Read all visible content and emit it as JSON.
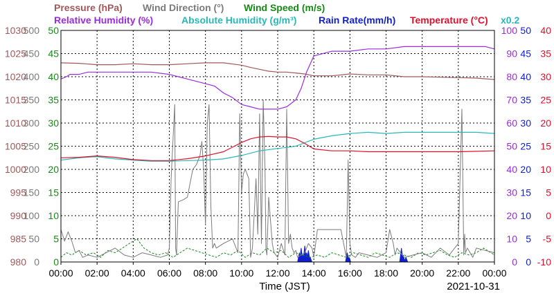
{
  "colors": {
    "pressure": "#a0585a",
    "wind_direction": "#7a7a7a",
    "wind_speed": "#158a15",
    "humidity": "#9a2be0",
    "absolute_humidity": "#28b8b8",
    "rain_rate": "#1020d0",
    "temperature": "#e0102a",
    "grid": "#000000"
  },
  "chart_data": {
    "type": "line",
    "legend": {
      "row1": [
        {
          "key": "pressure",
          "text": "Pressure (hPa)"
        },
        {
          "key": "wind_direction",
          "text": "Wind Direction (°)"
        },
        {
          "key": "wind_speed",
          "text": "Wind Speed (m/s)"
        }
      ],
      "row2": [
        {
          "key": "humidity",
          "text": "Relative Humidity (%)"
        },
        {
          "key": "absolute_humidity",
          "text": "Absolute Humidity (g/m³)"
        },
        {
          "key": "rain_rate",
          "text": "Rain Rate(mm/h)"
        },
        {
          "key": "temperature",
          "text": "Temperature (°C)"
        },
        {
          "key": "absolute_humidity",
          "text": "x0.2"
        }
      ]
    },
    "xlabel": "Time (JST)",
    "date": "2021-10-31",
    "x_range_hours": [
      0,
      24
    ],
    "x_ticks": [
      "00:00",
      "02:00",
      "04:00",
      "06:00",
      "08:00",
      "10:00",
      "12:00",
      "14:00",
      "16:00",
      "18:00",
      "20:00",
      "22:00",
      "00:00"
    ],
    "axes": {
      "pressure": {
        "range": [
          980,
          1030
        ],
        "ticks": [
          "980",
          "985",
          "990",
          "995",
          "1000",
          "1005",
          "1010",
          "1015",
          "1020",
          "1025",
          "1030"
        ]
      },
      "wind_direction": {
        "range": [
          0,
          500
        ],
        "ticks": [
          "0",
          "50",
          "100",
          "150",
          "200",
          "250",
          "300",
          "350",
          "400",
          "450",
          "500"
        ]
      },
      "wind_speed": {
        "range": [
          0,
          50
        ],
        "ticks": [
          "0",
          "5",
          "10",
          "15",
          "20",
          "25",
          "30",
          "35",
          "40",
          "45",
          "50"
        ]
      },
      "humidity": {
        "range": [
          0,
          100
        ],
        "ticks": [
          "0",
          "10",
          "20",
          "30",
          "40",
          "50",
          "60",
          "70",
          "80",
          "90",
          "100"
        ]
      },
      "rain_rate": {
        "range": [
          0,
          50
        ],
        "ticks": [
          "0",
          "5",
          "10",
          "15",
          "20",
          "25",
          "30",
          "35",
          "40",
          "45",
          "50"
        ]
      },
      "temperature": {
        "range": [
          -10,
          40
        ],
        "ticks": [
          "-10",
          "-5",
          "0",
          "5",
          "10",
          "15",
          "20",
          "25",
          "30",
          "35",
          "40"
        ]
      }
    },
    "series": [
      {
        "name": "Pressure (hPa)",
        "key": "pressure",
        "axis": "pressure",
        "x": [
          0,
          1,
          2,
          3,
          4,
          5,
          6,
          7,
          8,
          9,
          10,
          10.5,
          11,
          11.5,
          12,
          12.5,
          13,
          13.5,
          14,
          15,
          16,
          17,
          18,
          19,
          20,
          21,
          22,
          23,
          24
        ],
        "y": [
          1023,
          1022.9,
          1022.6,
          1022.6,
          1022.8,
          1022.6,
          1022.6,
          1022.8,
          1023,
          1023,
          1022.5,
          1022,
          1021.6,
          1021.2,
          1021,
          1021,
          1020.8,
          1020.6,
          1020.2,
          1020.2,
          1020.6,
          1020.4,
          1020.4,
          1020,
          1020,
          1019.9,
          1019.8,
          1019.7,
          1019.4
        ]
      },
      {
        "name": "Relative Humidity (%)",
        "key": "humidity",
        "axis": "humidity",
        "x": [
          0,
          0.3,
          0.5,
          1,
          1.5,
          2,
          3,
          4,
          5,
          6,
          6.5,
          7,
          7.5,
          8,
          8.5,
          9,
          9.5,
          10,
          10.5,
          11,
          11.5,
          12,
          12.5,
          13,
          13.3,
          13.6,
          14,
          15,
          16,
          17,
          18,
          19,
          20,
          21,
          22,
          23,
          23.5,
          24
        ],
        "y": [
          79,
          80,
          81,
          81,
          82,
          82,
          82,
          82,
          82,
          81,
          80,
          79,
          78,
          77,
          76,
          73,
          71,
          68,
          67,
          66,
          66,
          66,
          67,
          70,
          75,
          82,
          89,
          91,
          91,
          92,
          92,
          93,
          93,
          93,
          93,
          93,
          93,
          92
        ]
      },
      {
        "name": "Absolute Humidity (g/m³)",
        "key": "absolute_humidity",
        "axis": "humidity",
        "x": [
          0,
          1,
          2,
          3,
          4,
          5,
          6,
          7,
          8,
          9,
          10,
          11,
          12,
          12.5,
          13,
          14,
          15,
          16,
          17,
          18,
          19,
          20,
          21,
          22,
          23,
          24
        ],
        "y": [
          44,
          45,
          45.5,
          44.5,
          44,
          43.5,
          43.5,
          43.8,
          44,
          44.5,
          46,
          48,
          49,
          49.5,
          50,
          53,
          54.5,
          55.5,
          56,
          55.5,
          56,
          56,
          56,
          56,
          56,
          55.5
        ]
      },
      {
        "name": "Temperature (°C)",
        "key": "temperature",
        "axis": "temperature",
        "x": [
          0,
          1,
          2,
          3,
          4,
          5,
          6,
          7,
          8,
          9,
          10,
          10.5,
          11,
          11.5,
          12,
          12.5,
          13,
          13.5,
          14,
          15,
          16,
          17,
          18,
          19,
          20,
          21,
          22,
          23,
          24
        ],
        "y": [
          12.5,
          12.6,
          12.9,
          12.6,
          12.1,
          11.9,
          11.9,
          12.3,
          12.9,
          13.8,
          15.8,
          16.6,
          17.0,
          17.1,
          17.0,
          17.0,
          16.6,
          15.6,
          14.4,
          14.0,
          14.0,
          13.8,
          13.8,
          13.8,
          13.8,
          13.8,
          13.8,
          13.9,
          14.0
        ]
      },
      {
        "name": "Wind Direction (°)",
        "key": "wind_direction",
        "axis": "wind_direction",
        "x": [
          0,
          0.2,
          0.4,
          0.6,
          0.8,
          1.0,
          1.2,
          1.5,
          2,
          2.5,
          3,
          3.5,
          4,
          4.5,
          5,
          5.5,
          5.9,
          6.0,
          6.1,
          6.3,
          6.35,
          6.4,
          6.5,
          6.8,
          7.0,
          7.2,
          7.3,
          7.5,
          7.7,
          7.8,
          7.9,
          8.0,
          8.1,
          8.2,
          8.3,
          8.4,
          8.5,
          8.6,
          9.0,
          9.5,
          9.8,
          9.9,
          10.0,
          10.1,
          10.2,
          10.4,
          10.5,
          10.6,
          10.8,
          10.9,
          11.0,
          11.1,
          11.2,
          11.3,
          11.35,
          11.4,
          11.5,
          11.7,
          11.8,
          12.0,
          12.2,
          12.4,
          12.5,
          12.55,
          12.6,
          12.7,
          12.8,
          12.9,
          13.0,
          13.1,
          13.3,
          13.5,
          13.7,
          13.9,
          14.0,
          14.2,
          14.5,
          15.0,
          15.5,
          15.8,
          15.9,
          16.0,
          16.1,
          16.3,
          16.5,
          17.0,
          17.5,
          18.0,
          18.2,
          18.4,
          18.5,
          18.6,
          18.8,
          19.0,
          19.5,
          20,
          20.5,
          21,
          21.5,
          22,
          22.2,
          22.3,
          22.35,
          22.4,
          22.5,
          22.8,
          23,
          23.5,
          24
        ],
        "y": [
          70,
          45,
          65,
          45,
          20,
          25,
          10,
          15,
          10,
          20,
          30,
          15,
          10,
          20,
          15,
          10,
          15,
          30,
          180,
          340,
          30,
          15,
          130,
          135,
          140,
          180,
          200,
          210,
          230,
          260,
          200,
          80,
          300,
          340,
          120,
          30,
          40,
          30,
          40,
          50,
          20,
          320,
          150,
          190,
          200,
          180,
          10,
          30,
          180,
          60,
          320,
          40,
          350,
          200,
          30,
          15,
          140,
          40,
          20,
          10,
          40,
          15,
          330,
          200,
          40,
          60,
          30,
          20,
          25,
          10,
          15,
          20,
          40,
          30,
          10,
          70,
          70,
          70,
          70,
          10,
          220,
          40,
          15,
          10,
          20,
          15,
          10,
          20,
          70,
          40,
          15,
          30,
          20,
          10,
          15,
          20,
          10,
          30,
          15,
          40,
          330,
          15,
          60,
          20,
          30,
          10,
          30,
          25,
          20
        ]
      },
      {
        "name": "Wind Speed (m/s)",
        "key": "wind_speed",
        "axis": "wind_speed",
        "x": [
          0,
          0.3,
          0.6,
          1.0,
          1.4,
          1.8,
          2.2,
          2.6,
          3.0,
          3.4,
          3.8,
          4.2,
          4.6,
          5.0,
          5.4,
          5.8,
          6.2,
          6.6,
          7.0,
          7.4,
          7.8,
          8.2,
          8.6,
          9.0,
          9.4,
          9.8,
          10.2,
          10.6,
          11.0,
          11.4,
          11.8,
          12.2,
          12.6,
          13.0,
          13.4,
          13.8,
          14.2,
          14.6,
          15.0,
          15.4,
          15.8,
          16.2,
          16.6,
          17.0,
          17.4,
          17.8,
          18.2,
          18.6,
          19.0,
          19.4,
          19.8,
          20.2,
          20.6,
          21.0,
          21.4,
          21.8,
          22.2,
          22.6,
          23.0,
          23.4,
          23.8,
          24.0
        ],
        "y": [
          1,
          2,
          1.5,
          2.5,
          1.5,
          2,
          1,
          2.5,
          2,
          3,
          4,
          5,
          3,
          2,
          1.5,
          2,
          1,
          2,
          3,
          2.5,
          2,
          1.5,
          1,
          2,
          1.5,
          2.5,
          1,
          2,
          1.5,
          3,
          2,
          2.5,
          1,
          2,
          1.5,
          1,
          1.5,
          1,
          2,
          1.5,
          1,
          2,
          1.5,
          1,
          2,
          1.5,
          1,
          2,
          1.5,
          1,
          2,
          1.5,
          2,
          2.5,
          1.5,
          1,
          2,
          1.5,
          2,
          3,
          2,
          1.5
        ]
      },
      {
        "name": "Rain Rate(mm/h)",
        "key": "rain_rate",
        "axis": "rain_rate",
        "x": [
          13.2,
          13.3,
          13.4,
          13.5,
          13.6,
          13.7,
          13.8,
          15.85,
          15.95,
          18.85,
          18.95,
          19.1
        ],
        "y": [
          2.0,
          3.0,
          1.5,
          3.5,
          2.0,
          2.5,
          1.0,
          2.0,
          1.0,
          3.0,
          1.5,
          1.0
        ]
      }
    ]
  }
}
